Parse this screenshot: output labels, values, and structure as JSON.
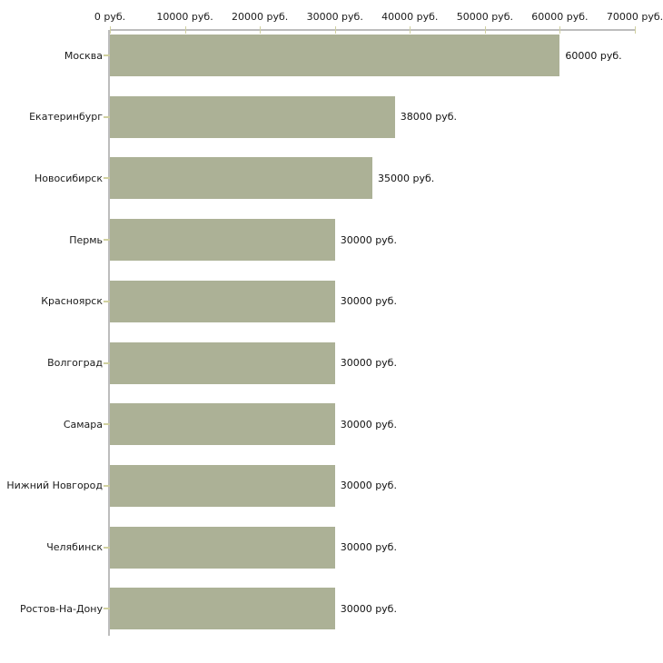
{
  "chart_data": {
    "type": "bar",
    "orientation": "horizontal",
    "title": "",
    "xlabel": "",
    "ylabel": "",
    "unit": "руб.",
    "categories": [
      "Москва",
      "Екатеринбург",
      "Новосибирск",
      "Пермь",
      "Красноярск",
      "Волгоград",
      "Самара",
      "Нижний Новгород",
      "Челябинск",
      "Ростов-На-Дону"
    ],
    "values": [
      60000,
      38000,
      35000,
      30000,
      30000,
      30000,
      30000,
      30000,
      30000,
      30000
    ],
    "value_labels": [
      "60000 руб.",
      "38000 руб.",
      "35000 руб.",
      "30000 руб.",
      "30000 руб.",
      "30000 руб.",
      "30000 руб.",
      "30000 руб.",
      "30000 руб.",
      "30000 руб."
    ],
    "x_tick_labels": [
      "0 руб.",
      "10000 руб.",
      "20000 руб.",
      "30000 руб.",
      "40000 руб.",
      "50000 руб.",
      "60000 руб.",
      "70000 руб."
    ],
    "xlim": [
      0,
      70000
    ],
    "grid": false,
    "legend": null,
    "colors": {
      "bar": "#acb196",
      "axis": "#bdbdbd",
      "tick": "#d0d0a0",
      "text": "#1a1a1a",
      "background": "#ffffff"
    }
  }
}
